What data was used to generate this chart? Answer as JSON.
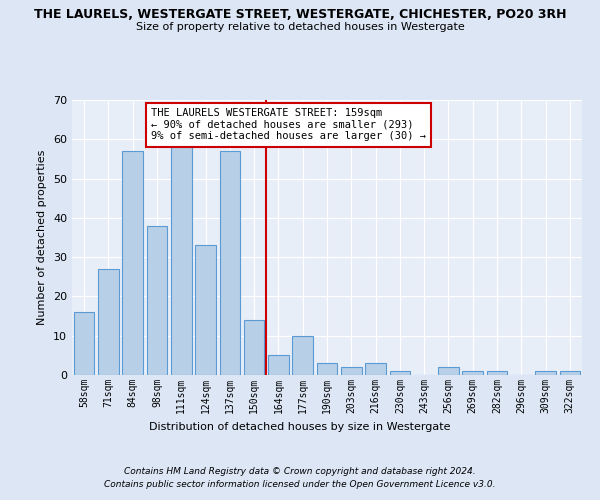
{
  "title": "THE LAURELS, WESTERGATE STREET, WESTERGATE, CHICHESTER, PO20 3RH",
  "subtitle": "Size of property relative to detached houses in Westergate",
  "xlabel": "Distribution of detached houses by size in Westergate",
  "ylabel": "Number of detached properties",
  "categories": [
    "58sqm",
    "71sqm",
    "84sqm",
    "98sqm",
    "111sqm",
    "124sqm",
    "137sqm",
    "150sqm",
    "164sqm",
    "177sqm",
    "190sqm",
    "203sqm",
    "216sqm",
    "230sqm",
    "243sqm",
    "256sqm",
    "269sqm",
    "282sqm",
    "296sqm",
    "309sqm",
    "322sqm"
  ],
  "values": [
    16,
    27,
    57,
    38,
    58,
    33,
    57,
    14,
    5,
    10,
    3,
    2,
    3,
    1,
    0,
    2,
    1,
    1,
    0,
    1,
    1
  ],
  "bar_color": "#b8cfe8",
  "bar_edge_color": "#5b9bd5",
  "reference_line_color": "#cc0000",
  "annotation_text": "THE LAURELS WESTERGATE STREET: 159sqm\n← 90% of detached houses are smaller (293)\n9% of semi-detached houses are larger (30) →",
  "annotation_box_color": "#cc0000",
  "ylim": [
    0,
    70
  ],
  "yticks": [
    0,
    10,
    20,
    30,
    40,
    50,
    60,
    70
  ],
  "footer1": "Contains HM Land Registry data © Crown copyright and database right 2024.",
  "footer2": "Contains public sector information licensed under the Open Government Licence v3.0.",
  "bg_color": "#dce6f5",
  "plot_bg_color": "#e8eef8"
}
